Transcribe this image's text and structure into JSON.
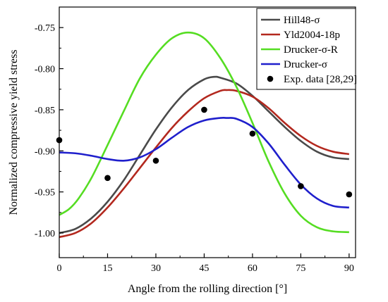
{
  "chart_data": {
    "type": "line",
    "title": "",
    "xlabel": "Angle from the rolling direction [°]",
    "ylabel": "Normalized compressive yield stress",
    "xlim": [
      0,
      92
    ],
    "ylim": [
      -1.03,
      -0.725
    ],
    "xticks": [
      0,
      15,
      30,
      45,
      60,
      75,
      90
    ],
    "yticks": [
      -1.0,
      -0.95,
      -0.9,
      -0.85,
      -0.8,
      -0.75
    ],
    "ytick_labels": [
      "-1.00",
      "-0.95",
      "-0.90",
      "-0.85",
      "-0.80",
      "-0.75"
    ],
    "grid": false,
    "legend_position": "top-right",
    "series": [
      {
        "name": "Hill48-σ",
        "color": "#4a4a4a",
        "x": [
          0,
          5,
          10,
          15,
          20,
          25,
          30,
          35,
          40,
          45,
          48,
          50,
          55,
          60,
          65,
          70,
          75,
          80,
          85,
          90
        ],
        "y": [
          -1.0,
          -0.995,
          -0.982,
          -0.962,
          -0.936,
          -0.905,
          -0.874,
          -0.847,
          -0.826,
          -0.813,
          -0.81,
          -0.811,
          -0.818,
          -0.833,
          -0.852,
          -0.871,
          -0.888,
          -0.901,
          -0.908,
          -0.91
        ]
      },
      {
        "name": "Yld2004-18p",
        "color": "#b3281e",
        "x": [
          0,
          5,
          10,
          15,
          20,
          25,
          30,
          35,
          40,
          45,
          50,
          52,
          55,
          60,
          65,
          70,
          75,
          80,
          85,
          90
        ],
        "y": [
          -1.005,
          -1.0,
          -0.988,
          -0.969,
          -0.946,
          -0.921,
          -0.896,
          -0.872,
          -0.852,
          -0.836,
          -0.827,
          -0.826,
          -0.827,
          -0.834,
          -0.848,
          -0.866,
          -0.882,
          -0.894,
          -0.901,
          -0.904
        ]
      },
      {
        "name": "Drucker-σ-R",
        "color": "#55dd22",
        "x": [
          0,
          3,
          6,
          10,
          15,
          20,
          25,
          30,
          35,
          40,
          45,
          50,
          55,
          60,
          65,
          70,
          75,
          80,
          85,
          90
        ],
        "y": [
          -0.978,
          -0.971,
          -0.958,
          -0.933,
          -0.893,
          -0.852,
          -0.812,
          -0.783,
          -0.763,
          -0.756,
          -0.763,
          -0.787,
          -0.822,
          -0.866,
          -0.913,
          -0.952,
          -0.979,
          -0.993,
          -0.998,
          -0.999
        ]
      },
      {
        "name": "Drucker-σ",
        "color": "#1f1fcc",
        "x": [
          0,
          5,
          10,
          15,
          20,
          25,
          30,
          35,
          40,
          45,
          50,
          52,
          55,
          60,
          65,
          70,
          75,
          80,
          85,
          90
        ],
        "y": [
          -0.902,
          -0.903,
          -0.906,
          -0.91,
          -0.912,
          -0.908,
          -0.898,
          -0.884,
          -0.871,
          -0.863,
          -0.86,
          -0.86,
          -0.861,
          -0.871,
          -0.891,
          -0.917,
          -0.941,
          -0.958,
          -0.967,
          -0.969
        ]
      }
    ],
    "scatter": {
      "name": "Exp. data [28,29]",
      "color": "#000000",
      "x": [
        0,
        15,
        30,
        45,
        60,
        75,
        90
      ],
      "y": [
        -0.887,
        -0.933,
        -0.912,
        -0.85,
        -0.879,
        -0.943,
        -0.953
      ]
    }
  }
}
